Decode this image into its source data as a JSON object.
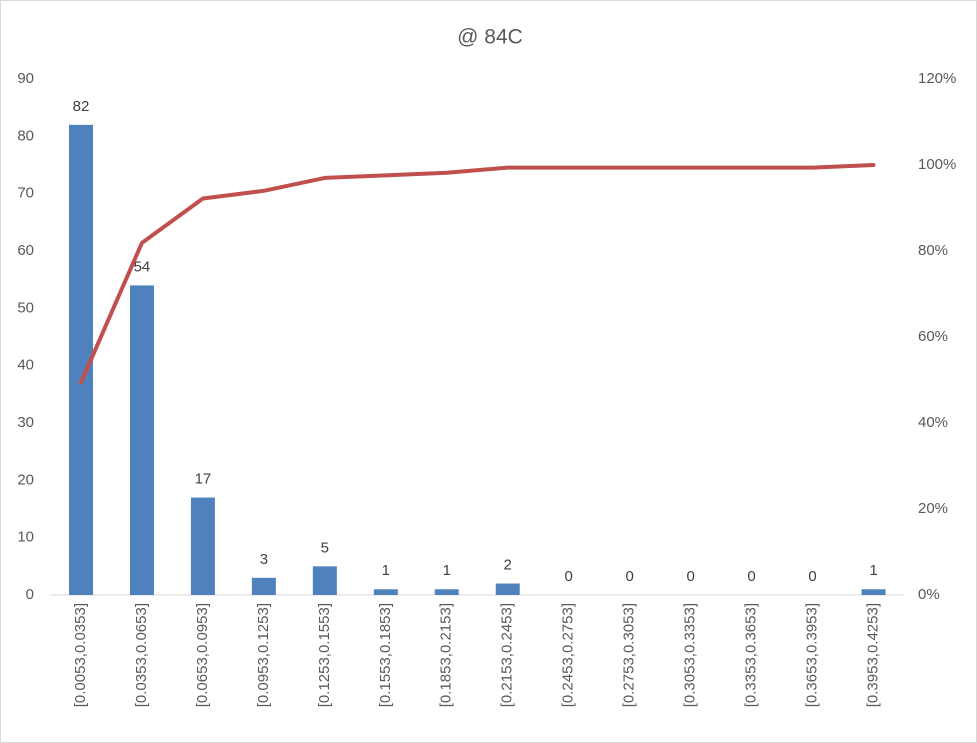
{
  "chart_data": {
    "type": "bar",
    "title": "@ 84C",
    "categories": [
      "[0.0053,0.0353]",
      "[0.0353,0.0653]",
      "[0.0653,0.0953]",
      "[0.0953,0.1253]",
      "[0.1253,0.1553]",
      "[0.1553,0.1853]",
      "[0.1853,0.2153]",
      "[0.2153,0.2453]",
      "[0.2453,0.2753]",
      "[0.2753,0.3053]",
      "[0.3053,0.3353]",
      "[0.3353,0.3653]",
      "[0.3653,0.3953]",
      "[0.3953,0.4253]"
    ],
    "series": [
      {
        "type": "bar",
        "color": "#4f81bd",
        "values": [
          82,
          54,
          17,
          3,
          5,
          1,
          1,
          2,
          0,
          0,
          0,
          0,
          0,
          1
        ],
        "data_labels": true
      },
      {
        "type": "line",
        "axis": "y2",
        "color": "#c0504d",
        "values": [
          49.4,
          81.9,
          92.2,
          94.0,
          97.0,
          97.6,
          98.2,
          99.4,
          99.4,
          99.4,
          99.4,
          99.4,
          99.4,
          100
        ]
      }
    ],
    "ylim": [
      0,
      90
    ],
    "yticks": [
      0,
      10,
      20,
      30,
      40,
      50,
      60,
      70,
      80,
      90
    ],
    "y2lim": [
      0,
      120
    ],
    "y2ticks": [
      {
        "value": 0,
        "label": "0%"
      },
      {
        "value": 20,
        "label": "20%"
      },
      {
        "value": 40,
        "label": "40%"
      },
      {
        "value": 60,
        "label": "60%"
      },
      {
        "value": 80,
        "label": "80%"
      },
      {
        "value": 100,
        "label": "100%"
      },
      {
        "value": 120,
        "label": "120%"
      }
    ],
    "grid": false
  }
}
